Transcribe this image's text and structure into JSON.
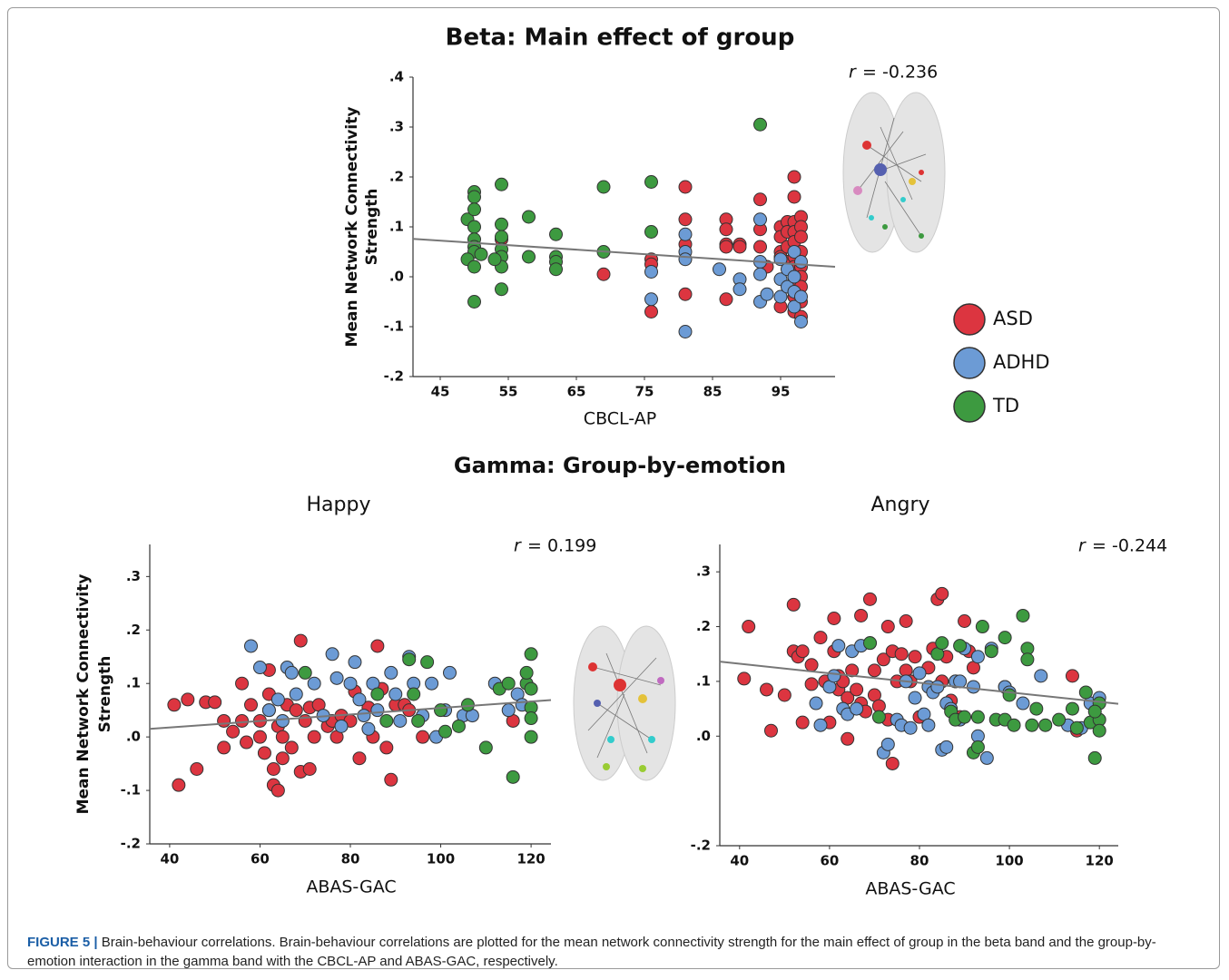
{
  "chart_data": [
    {
      "type": "scatter",
      "title": "Beta: Main effect of group",
      "xlabel": "CBCL-AP",
      "ylabel": [
        "Mean Network Connectivity",
        "Strength"
      ],
      "annotation": {
        "symbol": "r",
        "value_text": "= -0.236"
      },
      "legend": "right",
      "xlim": [
        41,
        103
      ],
      "ylim": [
        -0.2,
        0.4
      ],
      "xticks": [
        45,
        55,
        65,
        75,
        85,
        95
      ],
      "yticks": [
        {
          "value": 0.4,
          "label": ".4"
        },
        {
          "value": 0.3,
          "label": ".3"
        },
        {
          "value": 0.2,
          "label": ".2"
        },
        {
          "value": 0.1,
          "label": ".1"
        },
        {
          "value": 0,
          "label": ".0"
        },
        {
          "value": -0.1,
          "label": "-.1"
        },
        {
          "value": -0.2,
          "label": "-.2"
        }
      ],
      "trendline": {
        "x": [
          41,
          103
        ],
        "y": [
          0.076,
          0.02
        ]
      },
      "series": [
        {
          "name": "ASD",
          "color": "#dc3540",
          "x": [
            54,
            69,
            76,
            76,
            76,
            81,
            81,
            81,
            81,
            87,
            87,
            87,
            87,
            87,
            89,
            89,
            92,
            92,
            92,
            93,
            95,
            95,
            95,
            95,
            95,
            96,
            96,
            96,
            96,
            97,
            97,
            97,
            97,
            97,
            97,
            97,
            97,
            97,
            97,
            98,
            98,
            98,
            98,
            98,
            98,
            98,
            98,
            98
          ],
          "values": [
            0.075,
            0.005,
            0.035,
            0.025,
            -0.07,
            0.18,
            0.115,
            0.065,
            -0.035,
            0.115,
            0.095,
            0.065,
            0.06,
            -0.045,
            0.065,
            0.06,
            0.155,
            0.095,
            0.06,
            0.02,
            0.1,
            0.08,
            0.05,
            0.04,
            -0.06,
            0.11,
            0.09,
            0.06,
            0.03,
            0.2,
            0.16,
            0.11,
            0.09,
            0.07,
            0.04,
            0.02,
            -0.01,
            -0.04,
            -0.07,
            0.12,
            0.1,
            0.08,
            0.05,
            0.02,
            0,
            -0.02,
            -0.05,
            -0.08
          ]
        },
        {
          "name": "ADHD",
          "color": "#6c9bd5",
          "x": [
            76,
            76,
            81,
            81,
            81,
            81,
            86,
            89,
            89,
            92,
            92,
            92,
            92,
            93,
            95,
            95,
            95,
            96,
            96,
            97,
            97,
            97,
            97,
            98,
            98,
            98
          ],
          "values": [
            -0.045,
            0.01,
            0.085,
            0.05,
            0.035,
            -0.11,
            0.015,
            -0.005,
            -0.025,
            0.115,
            0.03,
            -0.05,
            0.005,
            -0.035,
            0.035,
            -0.005,
            -0.04,
            0.015,
            -0.02,
            0.05,
            0,
            -0.03,
            -0.06,
            -0.09,
            0.03,
            -0.04
          ]
        },
        {
          "name": "TD",
          "color": "#3d9a40",
          "x": [
            49,
            50,
            50,
            50,
            50,
            50,
            50,
            50,
            49,
            50,
            50,
            51,
            54,
            54,
            54,
            54,
            54,
            54,
            54,
            53,
            58,
            58,
            62,
            62,
            62,
            62,
            69,
            69,
            76,
            76,
            92
          ],
          "values": [
            0.115,
            0.17,
            0.16,
            0.135,
            0.1,
            0.075,
            0.06,
            0.05,
            0.035,
            0.02,
            -0.05,
            0.045,
            0.185,
            0.105,
            0.08,
            0.055,
            0.04,
            0.02,
            -0.025,
            0.035,
            0.12,
            0.04,
            0.085,
            0.04,
            0.03,
            0.015,
            0.18,
            0.05,
            0.19,
            0.09,
            0.305
          ]
        }
      ]
    },
    {
      "type": "scatter",
      "title": "Happy",
      "xlabel": "ABAS-GAC",
      "ylabel": [
        "Mean Network Connectivity",
        "Strength"
      ],
      "annotation": {
        "symbol": "r",
        "value_text": "= 0.199"
      },
      "xlim": [
        35.6,
        124.4
      ],
      "ylim": [
        -0.2,
        0.36
      ],
      "xticks": [
        40,
        60,
        80,
        100,
        120
      ],
      "yticks": [
        {
          "value": 0.3,
          "label": ".3"
        },
        {
          "value": 0.2,
          "label": ".2"
        },
        {
          "value": 0.1,
          "label": ".1"
        },
        {
          "value": 0,
          "label": ".0"
        },
        {
          "value": -0.1,
          "label": "-.1"
        },
        {
          "value": -0.2,
          "label": "-.2"
        }
      ],
      "trendline": {
        "x": [
          35.6,
          124.4
        ],
        "y": [
          0.015,
          0.069
        ]
      },
      "series": [
        {
          "name": "ASD",
          "color": "#dc3540",
          "x": [
            41,
            42,
            44,
            46,
            48,
            50,
            52,
            52,
            54,
            56,
            56,
            57,
            58,
            60,
            60,
            61,
            62,
            62,
            62,
            63,
            63,
            64,
            64,
            65,
            65,
            66,
            67,
            68,
            69,
            69,
            70,
            71,
            71,
            72,
            73,
            75,
            76,
            77,
            78,
            80,
            81,
            82,
            84,
            85,
            86,
            87,
            88,
            89,
            90,
            92,
            93,
            96,
            116
          ],
          "values": [
            0.06,
            -0.09,
            0.07,
            -0.06,
            0.065,
            0.065,
            0.03,
            -0.02,
            0.01,
            0.1,
            0.03,
            -0.01,
            0.06,
            0.03,
            0,
            -0.03,
            0.125,
            0.08,
            0.05,
            -0.06,
            -0.09,
            0.02,
            -0.1,
            0,
            -0.04,
            0.06,
            -0.02,
            0.05,
            0.18,
            -0.065,
            0.03,
            0.055,
            -0.06,
            0,
            0.06,
            0.02,
            0.03,
            0,
            0.04,
            0.03,
            0.085,
            -0.04,
            0.055,
            0,
            0.17,
            0.09,
            -0.02,
            -0.08,
            0.06,
            0.06,
            0.05,
            0,
            0.03
          ]
        },
        {
          "name": "ADHD",
          "color": "#6c9bd5",
          "x": [
            58,
            60,
            62,
            64,
            65,
            66,
            67,
            68,
            72,
            74,
            76,
            77,
            78,
            80,
            81,
            82,
            83,
            84,
            85,
            86,
            89,
            90,
            91,
            93,
            94,
            96,
            98,
            99,
            101,
            102,
            105,
            107,
            112,
            115,
            117,
            118
          ],
          "values": [
            0.17,
            0.13,
            0.05,
            0.07,
            0.03,
            0.13,
            0.12,
            0.08,
            0.1,
            0.04,
            0.155,
            0.11,
            0.02,
            0.1,
            0.14,
            0.07,
            0.04,
            0.015,
            0.1,
            0.05,
            0.12,
            0.08,
            0.03,
            0.15,
            0.1,
            0.04,
            0.1,
            0,
            0.05,
            0.12,
            0.04,
            0.04,
            0.1,
            0.05,
            0.08,
            0.06
          ]
        },
        {
          "name": "TD",
          "color": "#3d9a40",
          "x": [
            70,
            86,
            88,
            93,
            94,
            95,
            97,
            100,
            101,
            104,
            106,
            110,
            113,
            115,
            116,
            119,
            120,
            120,
            120,
            120,
            120,
            119
          ],
          "values": [
            0.12,
            0.08,
            0.03,
            0.145,
            0.08,
            0.03,
            0.14,
            0.05,
            0.01,
            0.02,
            0.06,
            -0.02,
            0.09,
            0.1,
            -0.075,
            0.1,
            0.155,
            0.09,
            0.055,
            0.035,
            0,
            0.12
          ]
        }
      ]
    },
    {
      "type": "scatter",
      "title": "Angry",
      "xlabel": "ABAS-GAC",
      "annotation": {
        "symbol": "r",
        "value_text": "= -0.244"
      },
      "xlim": [
        35.6,
        124.2
      ],
      "ylim": [
        -0.2,
        0.35
      ],
      "xticks": [
        40,
        60,
        80,
        100,
        120
      ],
      "yticks": [
        {
          "value": 0.3,
          "label": ".3"
        },
        {
          "value": 0.2,
          "label": ".2"
        },
        {
          "value": 0.1,
          "label": ".1"
        },
        {
          "value": 0,
          "label": ".0"
        },
        {
          "value": -0.2,
          "label": "-.2"
        }
      ],
      "trendline": {
        "x": [
          35.6,
          124.2
        ],
        "y": [
          0.136,
          0.059
        ]
      },
      "series": [
        {
          "name": "ASD",
          "color": "#dc3540",
          "x": [
            41,
            42,
            46,
            47,
            50,
            52,
            52,
            53,
            54,
            54,
            56,
            56,
            58,
            59,
            60,
            61,
            61,
            62,
            62,
            63,
            64,
            64,
            65,
            66,
            67,
            67,
            68,
            69,
            69,
            70,
            70,
            71,
            72,
            73,
            73,
            74,
            74,
            75,
            76,
            77,
            77,
            78,
            79,
            80,
            82,
            83,
            84,
            85,
            85,
            86,
            87,
            88,
            89,
            90,
            91,
            92,
            99,
            114,
            115
          ],
          "values": [
            0.105,
            0.2,
            0.085,
            0.01,
            0.075,
            0.24,
            0.155,
            0.145,
            0.155,
            0.025,
            0.095,
            0.13,
            0.18,
            0.1,
            0.025,
            0.215,
            0.155,
            0.11,
            0.085,
            0.1,
            0.07,
            -0.005,
            0.12,
            0.085,
            0.22,
            0.06,
            0.045,
            0.25,
            0.17,
            0.12,
            0.075,
            0.055,
            0.14,
            0.2,
            0.03,
            0.155,
            -0.05,
            0.1,
            0.15,
            0.21,
            0.12,
            0.1,
            0.145,
            0.035,
            0.125,
            0.16,
            0.25,
            0.26,
            0.1,
            0.145,
            0.065,
            0.1,
            0.035,
            0.21,
            0.155,
            0.125,
            0.09,
            0.11,
            0.01
          ]
        },
        {
          "name": "ADHD",
          "color": "#6c9bd5",
          "x": [
            57,
            58,
            60,
            61,
            62,
            63,
            64,
            65,
            66,
            67,
            72,
            73,
            75,
            76,
            77,
            78,
            79,
            80,
            81,
            82,
            82,
            83,
            84,
            85,
            86,
            86,
            87,
            88,
            89,
            89,
            90,
            92,
            93,
            93,
            95,
            96,
            99,
            100,
            103,
            107,
            113,
            116,
            118,
            120
          ],
          "values": [
            0.06,
            0.02,
            0.09,
            0.11,
            0.165,
            0.05,
            0.04,
            0.155,
            0.05,
            0.165,
            -0.03,
            -0.015,
            0.03,
            0.02,
            0.1,
            0.015,
            0.07,
            0.115,
            0.04,
            0.02,
            0.09,
            0.08,
            0.09,
            -0.025,
            -0.02,
            0.06,
            0.05,
            0.1,
            0.1,
            0.03,
            0.16,
            0.09,
            0,
            0.145,
            -0.04,
            0.16,
            0.09,
            0.08,
            0.06,
            0.11,
            0.02,
            0.015,
            0.06,
            0.07
          ]
        },
        {
          "name": "TD",
          "color": "#3d9a40",
          "x": [
            69,
            71,
            84,
            85,
            87,
            88,
            89,
            90,
            92,
            93,
            93,
            94,
            96,
            97,
            99,
            99,
            100,
            101,
            103,
            104,
            104,
            105,
            106,
            108,
            111,
            114,
            115,
            117,
            118,
            119,
            120,
            120,
            120,
            119
          ],
          "values": [
            0.17,
            0.035,
            0.15,
            0.17,
            0.045,
            0.03,
            0.165,
            0.035,
            -0.03,
            -0.02,
            0.035,
            0.2,
            0.155,
            0.03,
            0.18,
            0.03,
            0.075,
            0.02,
            0.22,
            0.16,
            0.14,
            0.02,
            0.05,
            0.02,
            0.03,
            0.05,
            0.015,
            0.08,
            0.025,
            -0.04,
            0.06,
            0.03,
            0.01,
            0.045
          ]
        }
      ]
    }
  ],
  "gamma_title": "Gamma: Group-by-emotion",
  "caption": {
    "label": "FIGURE 5 |",
    "text": "Brain-behaviour correlations. Brain-behaviour correlations are plotted for the mean network connectivity strength for the main effect of group in the beta band and the group-by-emotion interaction in the gamma band with the CBCL-AP and ABAS-GAC, respectively."
  }
}
